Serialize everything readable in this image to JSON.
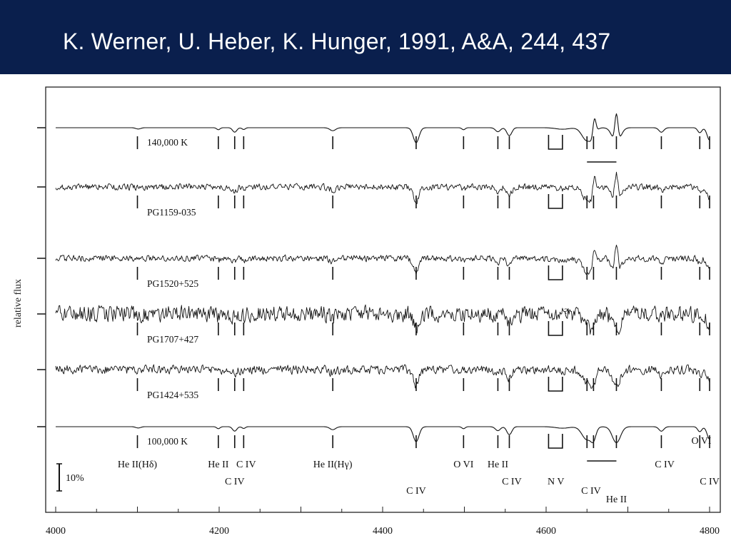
{
  "slide": {
    "title": "K. Werner, U. Heber, K. Hunger, 1991, A&A, 244, 437"
  },
  "chart_data": {
    "type": "line",
    "ylabel": "relative flux",
    "xlim": [
      4000,
      4800
    ],
    "xticks": [
      4000,
      4200,
      4400,
      4600,
      4800
    ],
    "scale_bar": "10%",
    "question_mark": "?",
    "series": [
      {
        "name": "140,000 K",
        "kind": "model",
        "noise": 0.0,
        "emission": 1.0
      },
      {
        "name": "PG1159-035",
        "kind": "observed",
        "noise": 0.35,
        "emission": 1.0
      },
      {
        "name": "PG1520+525",
        "kind": "observed",
        "noise": 0.35,
        "emission": 1.0
      },
      {
        "name": "PG1707+427",
        "kind": "observed",
        "noise": 0.9,
        "emission": 0.0
      },
      {
        "name": "PG1424+535",
        "kind": "observed",
        "noise": 0.5,
        "emission": 0.0
      },
      {
        "name": "100,000 K",
        "kind": "model",
        "noise": 0.0,
        "emission": 0.0
      }
    ],
    "line_markers": [
      4100,
      4199,
      4219,
      4230,
      4339,
      4441,
      4499,
      4541,
      4555,
      4650,
      4658,
      4686,
      4741,
      4788,
      4800
    ],
    "absorption_lines": [
      {
        "wavelength": 4101,
        "depth": 0.25,
        "width": 3
      },
      {
        "wavelength": 4199,
        "depth": 0.4,
        "width": 2
      },
      {
        "wavelength": 4219,
        "depth": 0.9,
        "width": 2.5
      },
      {
        "wavelength": 4230,
        "depth": 0.35,
        "width": 2
      },
      {
        "wavelength": 4339,
        "depth": 0.6,
        "width": 3.5
      },
      {
        "wavelength": 4441,
        "depth": 3.0,
        "width": 3.5
      },
      {
        "wavelength": 4499,
        "depth": 0.4,
        "width": 2
      },
      {
        "wavelength": 4541,
        "depth": 0.8,
        "width": 3
      },
      {
        "wavelength": 4555,
        "depth": 1.6,
        "width": 3
      },
      {
        "wavelength": 4620,
        "depth": 0.3,
        "width": 8
      },
      {
        "wavelength": 4650,
        "depth": 2.6,
        "width": 6
      },
      {
        "wavelength": 4658,
        "depth": 2.0,
        "width": 3
      },
      {
        "wavelength": 4686,
        "depth": 3.2,
        "width": 5
      },
      {
        "wavelength": 4741,
        "depth": 0.9,
        "width": 3
      },
      {
        "wavelength": 4788,
        "depth": 1.0,
        "width": 2.5
      },
      {
        "wavelength": 4800,
        "depth": 2.5,
        "width": 3
      }
    ],
    "emission_lines": [
      {
        "wavelength": 4659,
        "height": 4.5,
        "width": 2
      },
      {
        "wavelength": 4686,
        "height": 6.0,
        "width": 2
      }
    ],
    "labels": {
      "ion_labels": [
        {
          "wavelength": 4100,
          "level": 0,
          "text": "He II(Hδ)"
        },
        {
          "wavelength": 4199,
          "level": 0,
          "text": "He II"
        },
        {
          "wavelength": 4233,
          "level": 0,
          "text": "C IV"
        },
        {
          "wavelength": 4219,
          "level": 1,
          "text": "C IV"
        },
        {
          "wavelength": 4339,
          "level": 0,
          "text": "He II(Hγ)"
        },
        {
          "wavelength": 4441,
          "level": 2,
          "text": "C IV"
        },
        {
          "wavelength": 4499,
          "level": 0,
          "text": "O VI"
        },
        {
          "wavelength": 4541,
          "level": 0,
          "text": "He II"
        },
        {
          "wavelength": 4558,
          "level": 1,
          "text": "C IV"
        },
        {
          "wavelength": 4612,
          "level": 1,
          "text": "N V"
        },
        {
          "wavelength": 4655,
          "level": 2,
          "text": "C IV"
        },
        {
          "wavelength": 4686,
          "level": 3,
          "text": "He II"
        },
        {
          "wavelength": 4745,
          "level": 0,
          "text": "C IV"
        },
        {
          "wavelength": 4790,
          "level": -1,
          "text": "O VI"
        },
        {
          "wavelength": 4800,
          "level": 1,
          "text": "C IV"
        }
      ]
    }
  }
}
